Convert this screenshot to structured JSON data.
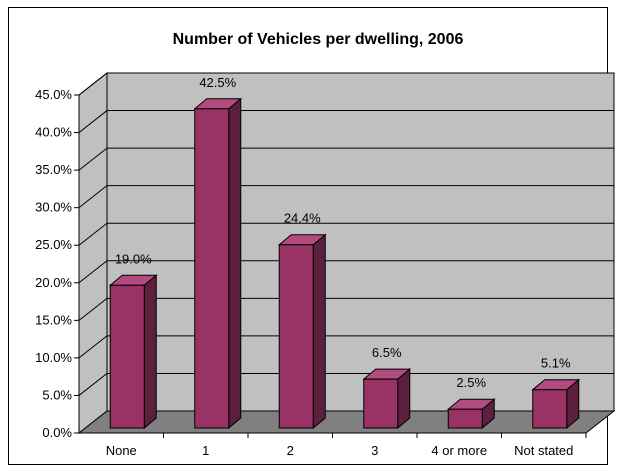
{
  "chart_data": {
    "type": "bar",
    "title": "Number of Vehicles per dwelling, 2006",
    "xlabel": "",
    "ylabel": "",
    "categories": [
      "None",
      "1",
      "2",
      "3",
      "4 or more",
      "Not stated"
    ],
    "values": [
      19.0,
      42.5,
      24.4,
      6.5,
      2.5,
      5.1
    ],
    "data_labels": [
      "19.0%",
      "42.5%",
      "24.4%",
      "6.5%",
      "2.5%",
      "5.1%"
    ],
    "ylim": [
      0,
      45
    ],
    "ytick_values": [
      0,
      5,
      10,
      15,
      20,
      25,
      30,
      35,
      40,
      45
    ],
    "ytick_labels": [
      "0.0%",
      "5.0%",
      "10.0%",
      "15.0%",
      "20.0%",
      "25.0%",
      "30.0%",
      "35.0%",
      "40.0%",
      "45.0%"
    ],
    "grid": true,
    "legend": "none",
    "style": "3d",
    "colors": {
      "bar_front": "#993366",
      "bar_top": "#b34a80",
      "bar_side": "#5c1f3d",
      "wall": "#c0c0c0",
      "floor": "#808080",
      "grid": "#000000"
    }
  }
}
